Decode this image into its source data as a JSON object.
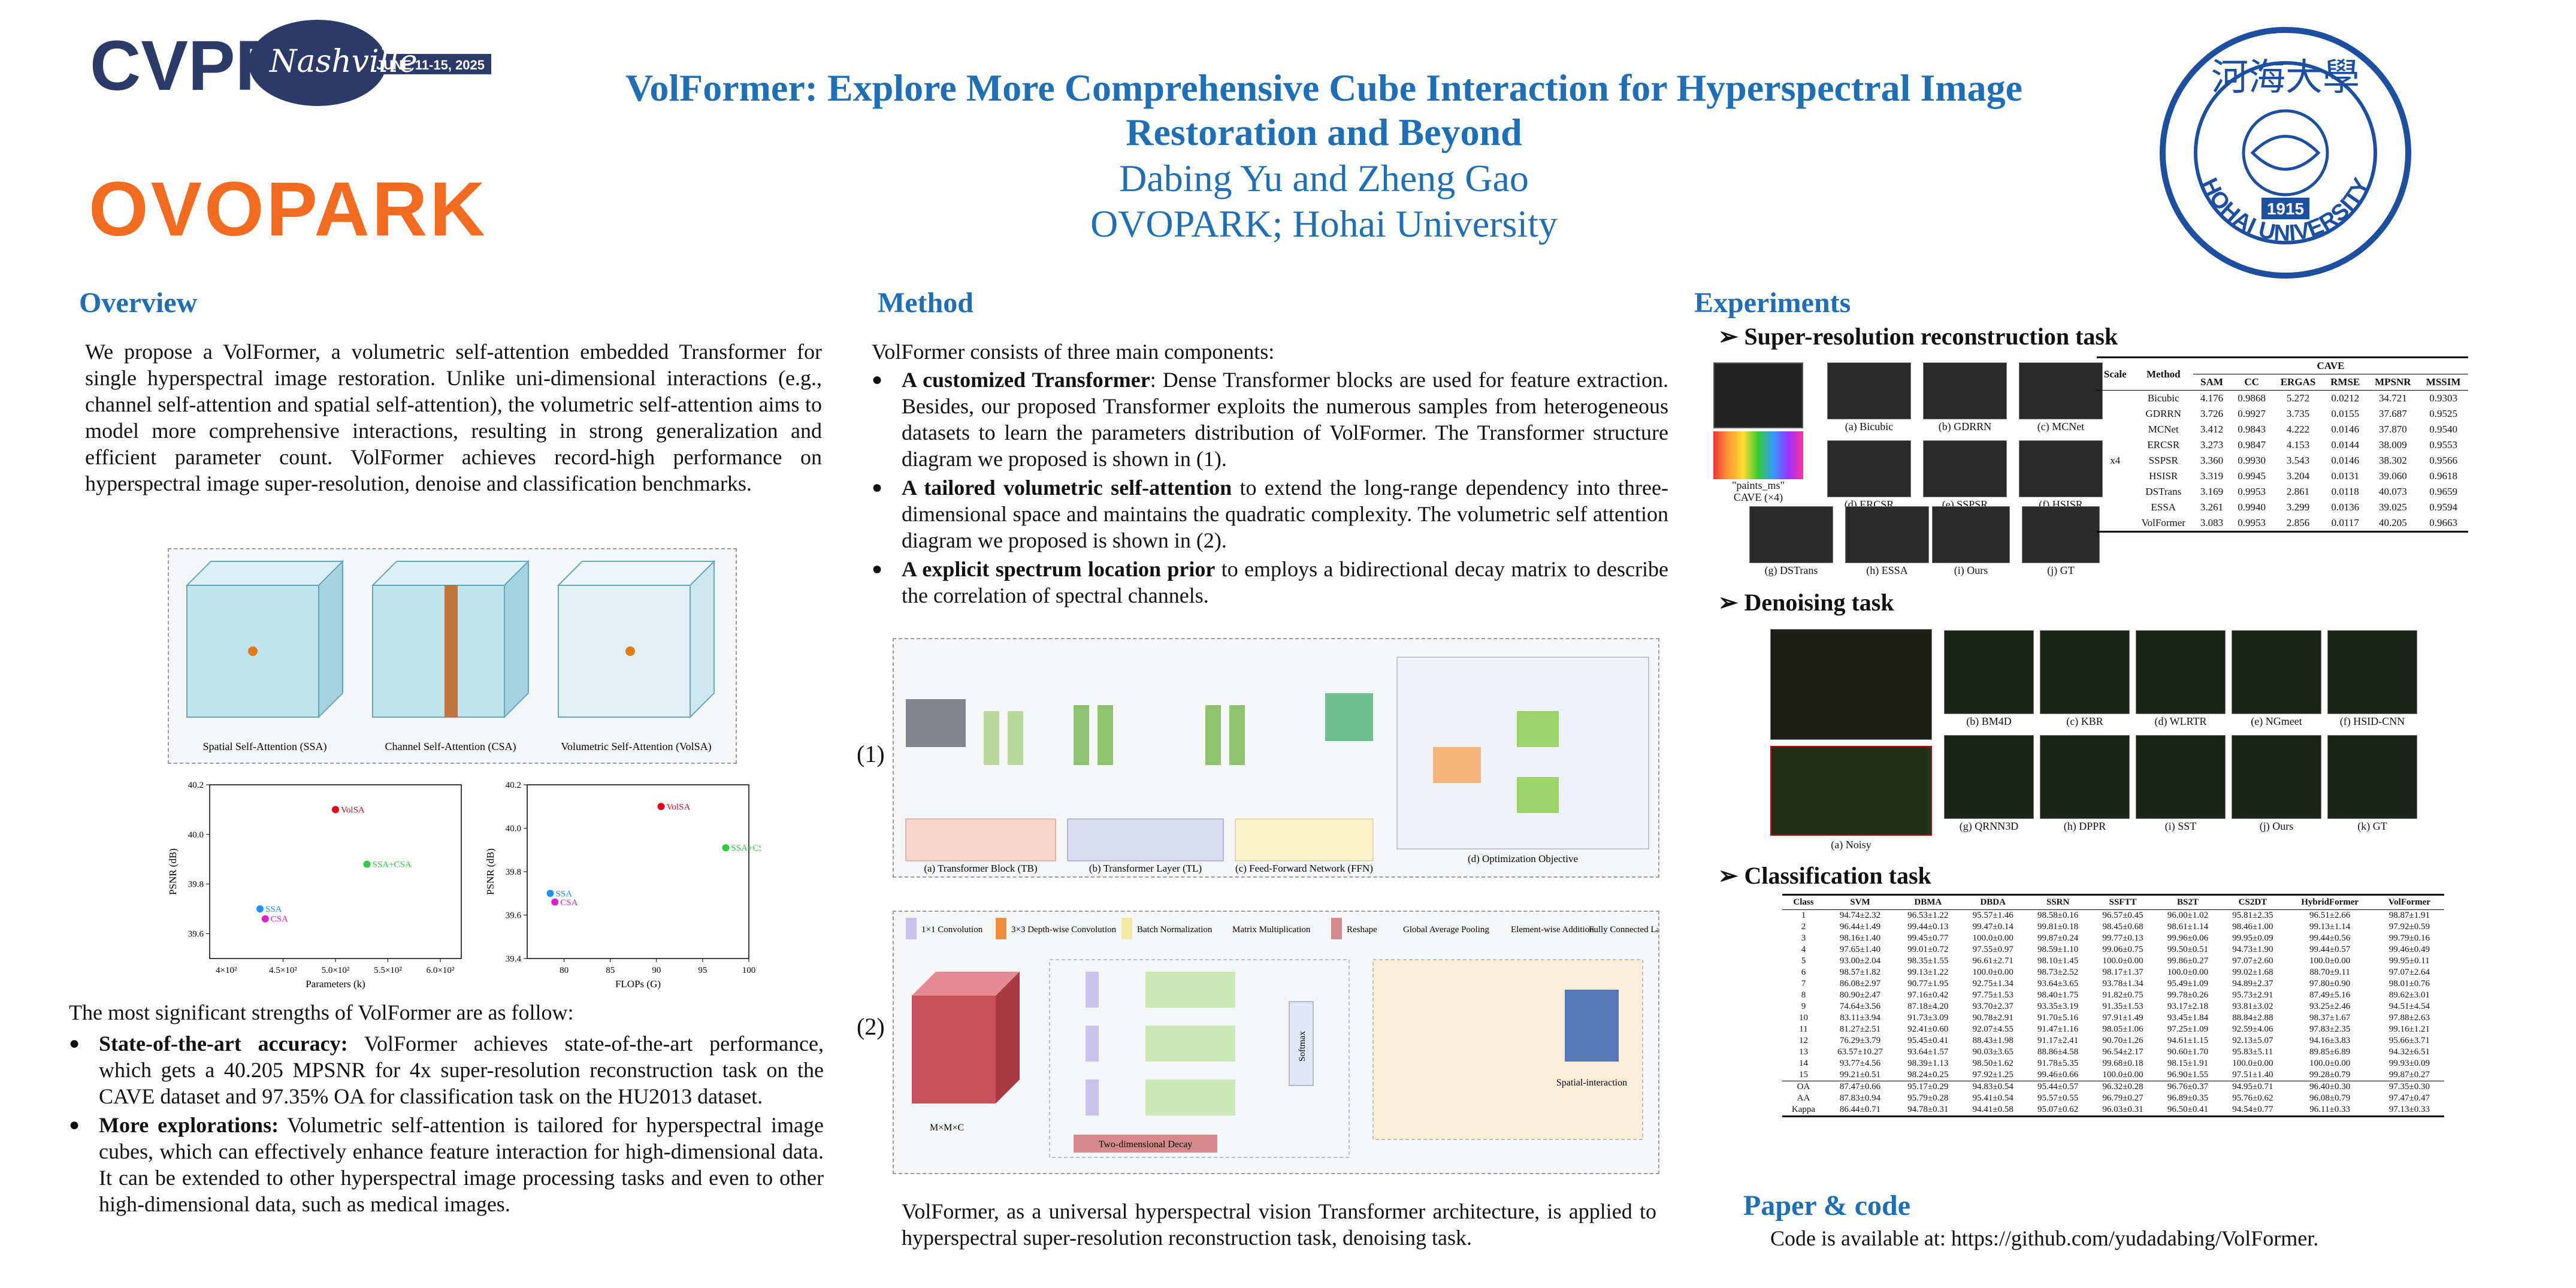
{
  "header": {
    "cvpr_logo": {
      "main": "CVPR",
      "city": "Nashville",
      "dates": "JUNE 11-15, 2025"
    },
    "ovopark_logo": "OVOPARK",
    "title_line1": "VolFormer: Explore More Comprehensive Cube Interaction for Hyperspectral Image",
    "title_line2": "Restoration and Beyond",
    "authors": "Dabing Yu and Zheng Gao",
    "affiliation": "OVOPARK; Hohai University",
    "hohai_logo": {
      "chars": "河海大學",
      "year": "1915",
      "ring_text": "HOHAI UNIVERSITY"
    }
  },
  "overview": {
    "title": "Overview",
    "intro": "We propose a VolFormer, a volumetric self-attention embedded Transformer for single hyperspectral image restoration. Unlike uni-dimensional interactions (e.g., channel self-attention and spatial self-attention), the volumetric self-attention aims to model more comprehensive interactions, resulting in strong generalization and efficient parameter count. VolFormer achieves record-high performance on hyperspectral image super-resolution, denoise and classification benchmarks.",
    "fig_captions": [
      "Spatial Self-Attention (SSA)",
      "Channel Self-Attention (CSA)",
      "Volumetric Self-Attention (VolSA)"
    ],
    "strengths_intro": "The most significant strengths of VolFormer are as follow:",
    "strengths": [
      {
        "lead": "State-of-the-art accuracy:",
        "text": " VolFormer achieves state-of-the-art performance, which gets a 40.205 MPSNR for 4x super-resolution reconstruction task on the CAVE dataset and 97.35% OA for classification task on the HU2013 dataset."
      },
      {
        "lead": "More explorations:",
        "text": " Volumetric self-attention is tailored for hyperspectral image cubes, which can effectively enhance feature interaction for high-dimensional data. It can be extended to other hyperspectral image processing tasks and even to other high-dimensional data, such as medical images."
      }
    ]
  },
  "chart_data": [
    {
      "type": "scatter",
      "title": "",
      "xlabel": "Parameters (k)",
      "ylabel": "PSNR (dB)",
      "xlim": [
        3.8,
        6.2
      ],
      "ylim": [
        39.5,
        40.2
      ],
      "xticks": [
        "4.5×10²",
        "5.0×10²",
        "5.5×10²",
        "6.0×10²"
      ],
      "yticks": [
        "39.6",
        "39.8",
        "40.0",
        "40.2"
      ],
      "x_tick_values": [
        4.5,
        5.0,
        5.5,
        6.0
      ],
      "y_tick_values": [
        39.6,
        39.8,
        40.0,
        40.2
      ],
      "x_axis_labels": [
        "4×10²"
      ],
      "series": [
        {
          "name": "VolSA",
          "color": "#e0001b",
          "x": 5.0,
          "y": 40.1
        },
        {
          "name": "SSA+CSA",
          "color": "#2ecc40",
          "x": 5.3,
          "y": 39.88
        },
        {
          "name": "SSA",
          "color": "#1e90ff",
          "x": 4.28,
          "y": 39.7
        },
        {
          "name": "CSA",
          "color": "#e020c8",
          "x": 4.33,
          "y": 39.66
        }
      ]
    },
    {
      "type": "scatter",
      "title": "",
      "xlabel": "FLOPs (G)",
      "ylabel": "PSNR (dB)",
      "xlim": [
        76,
        100
      ],
      "ylim": [
        39.4,
        40.2
      ],
      "xticks": [
        "80",
        "85",
        "90",
        "95",
        "100"
      ],
      "yticks": [
        "39.4",
        "39.6",
        "39.8",
        "40.0",
        "40.2"
      ],
      "x_tick_values": [
        80,
        85,
        90,
        95,
        100
      ],
      "y_tick_values": [
        39.4,
        39.6,
        39.8,
        40.0,
        40.2
      ],
      "series": [
        {
          "name": "VolSA",
          "color": "#e0001b",
          "x": 90.5,
          "y": 40.1
        },
        {
          "name": "SSA+CSA",
          "color": "#2ecc40",
          "x": 97.5,
          "y": 39.91
        },
        {
          "name": "SSA",
          "color": "#1e90ff",
          "x": 78.5,
          "y": 39.7
        },
        {
          "name": "CSA",
          "color": "#e020c8",
          "x": 79.0,
          "y": 39.66
        }
      ]
    }
  ],
  "method": {
    "title": "Method",
    "intro": "VolFormer consists of three main components:",
    "components": [
      {
        "lead": "A customized Transformer",
        "text": ": Dense Transformer blocks are used for feature extraction. Besides, our proposed Transformer exploits the numerous samples from heterogeneous datasets to learn the parameters distribution of VolFormer. The Transformer structure diagram we proposed is shown in (1)."
      },
      {
        "lead": "A tailored volumetric self-attention",
        "text": " to extend the long-range dependency into three-dimensional space and maintains the quadratic complexity. The volumetric self attention diagram we proposed is shown in (2)."
      },
      {
        "lead": "A explicit spectrum location prior",
        "text": " to employs a bidirectional decay matrix to describe the correlation of spectral channels."
      }
    ],
    "diagram1_label": "(1)",
    "diagram2_label": "(2)",
    "diagram1_captions": [
      "(a) Transformer Block (TB)",
      "(b) Transformer Layer (TL)",
      "(c) Feed-Forward Network (FFN)",
      "(d) Optimization Objective"
    ],
    "diagram2_legend": [
      "1×1 Convolution",
      "3×3 Depth-wise Convolution",
      "Batch Normalization",
      "Matrix Multiplication",
      "Reshape",
      "Global Average Pooling",
      "Element-wise Addition",
      "Fully Connected Layer"
    ],
    "diagram2_labels": [
      "Two-dimensional Decay",
      "Spatial-interaction",
      "Softmax",
      "M×M×C"
    ],
    "closing": "VolFormer, as a universal hyperspectral vision Transformer architecture, is applied to hyperspectral super-resolution reconstruction task, denoising task."
  },
  "experiments": {
    "title": "Experiments",
    "sr": {
      "title": "Super-resolution reconstruction task",
      "image_labels": [
        "CAVE (×4)",
        "(a) Bicubic",
        "(b) GDRRN",
        "(c) MCNet",
        "(d) ERCSR",
        "(e) SSPSR",
        "(f) HSISR",
        "(g) DSTrans",
        "(h) ESSA",
        "(i) Ours",
        "(j) GT"
      ],
      "image_label_small": "\"paints_ms\"",
      "table": {
        "group": "CAVE",
        "headers": [
          "Scale",
          "Method",
          "SAM",
          "CC",
          "ERGAS",
          "RMSE",
          "MPSNR",
          "MSSIM"
        ],
        "scale": "x4",
        "rows": [
          [
            "Bicubic",
            "4.176",
            "0.9868",
            "5.272",
            "0.0212",
            "34.721",
            "0.9303"
          ],
          [
            "GDRRN",
            "3.726",
            "0.9927",
            "3.735",
            "0.0155",
            "37.687",
            "0.9525"
          ],
          [
            "MCNet",
            "3.412",
            "0.9843",
            "4.222",
            "0.0146",
            "37.870",
            "0.9540"
          ],
          [
            "ERCSR",
            "3.273",
            "0.9847",
            "4.153",
            "0.0144",
            "38.009",
            "0.9553"
          ],
          [
            "SSPSR",
            "3.360",
            "0.9930",
            "3.543",
            "0.0146",
            "38.302",
            "0.9566"
          ],
          [
            "HSISR",
            "3.319",
            "0.9945",
            "3.204",
            "0.0131",
            "39.060",
            "0.9618"
          ],
          [
            "DSTrans",
            "3.169",
            "0.9953",
            "2.861",
            "0.0118",
            "40.073",
            "0.9659"
          ],
          [
            "ESSA",
            "3.261",
            "0.9940",
            "3.299",
            "0.0136",
            "39.025",
            "0.9594"
          ],
          [
            "VolFormer",
            "3.083",
            "0.9953",
            "2.856",
            "0.0117",
            "40.205",
            "0.9663"
          ]
        ]
      }
    },
    "denoise": {
      "title": "Denoising task",
      "labels": [
        "(a) Noisy",
        "(b) BM4D",
        "(c) KBR",
        "(d) WLRTR",
        "(e) NGmeet",
        "(f) HSID-CNN",
        "(g) QRNN3D",
        "(h) DPPR",
        "(i) SST",
        "(j) Ours",
        "(k) GT"
      ]
    },
    "classification": {
      "title": "Classification task",
      "headers": [
        "Class",
        "SVM",
        "DBMA",
        "DBDA",
        "SSRN",
        "SSFTT",
        "BS2T",
        "CS2DT",
        "HybridFormer",
        "VolFormer"
      ],
      "rows": [
        [
          "1",
          "94.74±2.32",
          "96.53±1.22",
          "95.57±1.46",
          "98.58±0.16",
          "96.57±0.45",
          "96.00±1.02",
          "95.81±2.35",
          "96.51±2.66",
          "98.87±1.91"
        ],
        [
          "2",
          "96.44±1.49",
          "99.44±0.13",
          "99.47±0.14",
          "99.81±0.18",
          "98.45±0.68",
          "98.61±1.14",
          "98.46±1.00",
          "99.13±1.14",
          "97.92±0.59"
        ],
        [
          "3",
          "98.16±1.40",
          "99.45±0.77",
          "100.0±0.00",
          "99.87±0.24",
          "99.77±0.13",
          "99.96±0.06",
          "99.95±0.09",
          "99.44±0.56",
          "99.79±0.16"
        ],
        [
          "4",
          "97.65±1.40",
          "99.01±0.72",
          "97.55±0.97",
          "98.59±1.10",
          "99.06±0.75",
          "99.50±0.51",
          "94.73±1.90",
          "99.44±0.57",
          "99.46±0.49"
        ],
        [
          "5",
          "93.00±2.04",
          "98.35±1.55",
          "96.61±2.71",
          "98.10±1.45",
          "100.0±0.00",
          "99.86±0.27",
          "97.07±2.60",
          "100.0±0.00",
          "99.95±0.11"
        ],
        [
          "6",
          "98.57±1.82",
          "99.13±1.22",
          "100.0±0.00",
          "98.73±2.52",
          "98.17±1.37",
          "100.0±0.00",
          "99.02±1.68",
          "88.70±9.11",
          "97.07±2.64"
        ],
        [
          "7",
          "86.08±2.97",
          "90.77±1.95",
          "92.75±1.34",
          "93.64±3.65",
          "93.78±1.34",
          "95.49±1.09",
          "94.89±2.37",
          "97.80±0.90",
          "98.01±0.76"
        ],
        [
          "8",
          "80.90±2.47",
          "97.16±0.42",
          "97.75±1.53",
          "98.40±1.75",
          "91.82±0.75",
          "99.78±0.26",
          "95.73±2.91",
          "87.49±5.16",
          "89.62±3.01"
        ],
        [
          "9",
          "74.64±3.56",
          "87.18±4.20",
          "93.70±2.37",
          "93.35±3.19",
          "91.35±1.53",
          "93.17±2.18",
          "93.81±3.02",
          "93.25±2.46",
          "94.51±4.54"
        ],
        [
          "10",
          "83.11±3.94",
          "91.73±3.09",
          "90.78±2.91",
          "91.70±5.16",
          "97.91±1.49",
          "93.45±1.84",
          "88.84±2.88",
          "98.37±1.67",
          "97.88±2.63"
        ],
        [
          "11",
          "81.27±2.51",
          "92.41±0.60",
          "92.07±4.55",
          "91.47±1.16",
          "98.05±1.06",
          "97.25±1.09",
          "92.59±4.06",
          "97.83±2.35",
          "99.16±1.21"
        ],
        [
          "12",
          "76.29±3.79",
          "95.45±0.41",
          "88.43±1.98",
          "91.17±2.41",
          "90.70±1.26",
          "94.61±1.15",
          "92.13±5.07",
          "94.16±3.83",
          "95.66±3.71"
        ],
        [
          "13",
          "63.57±10.27",
          "93.64±1.57",
          "90.03±3.65",
          "88.86±4.58",
          "96.54±2.17",
          "90.60±1.70",
          "95.83±5.11",
          "89.85±6.89",
          "94.32±6.51"
        ],
        [
          "14",
          "93.77±4.56",
          "98.39±1.13",
          "98.50±1.62",
          "91.78±5.35",
          "99.68±0.18",
          "98.15±1.91",
          "100.0±0.00",
          "100.0±0.00",
          "99.93±0.09"
        ],
        [
          "15",
          "99.21±0.51",
          "98.24±0.25",
          "97.92±1.25",
          "99.46±0.66",
          "100.0±0.00",
          "96.90±1.55",
          "97.51±1.40",
          "99.28±0.79",
          "99.87±0.27"
        ]
      ],
      "summary": [
        [
          "OA",
          "87.47±0.66",
          "95.17±0.29",
          "94.83±0.54",
          "95.44±0.57",
          "96.32±0.28",
          "96.76±0.37",
          "94.95±0.71",
          "96.40±0.30",
          "97.35±0.30"
        ],
        [
          "AA",
          "87.83±0.94",
          "95.79±0.28",
          "95.41±0.54",
          "95.57±0.55",
          "96.79±0.27",
          "96.89±0.35",
          "95.76±0.62",
          "96.08±0.79",
          "97.47±0.47"
        ],
        [
          "Kappa",
          "86.44±0.71",
          "94.78±0.31",
          "94.41±0.58",
          "95.07±0.62",
          "96.03±0.31",
          "96.50±0.41",
          "94.54±0.77",
          "96.11±0.33",
          "97.13±0.33"
        ]
      ]
    },
    "paper_code": {
      "title": "Paper & code",
      "text": "Code is available at: https://github.com/yudadabing/VolFormer."
    }
  },
  "colors": {
    "accent": "#1f6fb7",
    "orange": "#f26b21",
    "cvpr_navy": "#2b3a67",
    "hohai_blue": "#1c4fa0"
  }
}
